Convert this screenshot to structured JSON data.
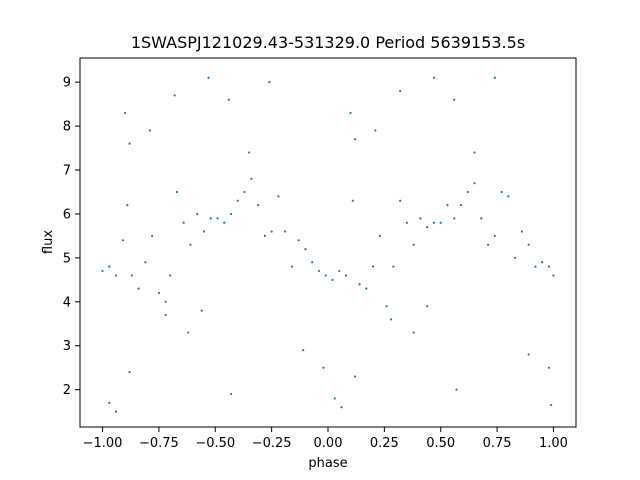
{
  "chart_data": {
    "type": "scatter",
    "title": "1SWASPJ121029.43-531329.0 Period 5639153.5s",
    "xlabel": "phase",
    "ylabel": "flux",
    "xlim": [
      -1.1,
      1.1
    ],
    "ylim": [
      1.15,
      9.55
    ],
    "x_ticks": [
      -1.0,
      -0.75,
      -0.5,
      -0.25,
      0.0,
      0.25,
      0.5,
      0.75,
      1.0
    ],
    "x_tick_labels": [
      "−1.00",
      "−0.75",
      "−0.50",
      "−0.25",
      "0.00",
      "0.25",
      "0.50",
      "0.75",
      "1.00"
    ],
    "y_ticks": [
      2,
      3,
      4,
      5,
      6,
      7,
      8,
      9
    ],
    "y_tick_labels": [
      "2",
      "3",
      "4",
      "5",
      "6",
      "7",
      "8",
      "9"
    ],
    "grid": false,
    "legend": "none",
    "marker_color": "#1f77b4",
    "series": [
      {
        "points": [
          [
            -1.0,
            4.7
          ],
          [
            -0.97,
            4.8
          ],
          [
            -0.94,
            4.6
          ],
          [
            -0.91,
            5.4
          ],
          [
            -0.89,
            6.2
          ],
          [
            -0.87,
            4.6
          ],
          [
            -0.84,
            4.3
          ],
          [
            -0.81,
            4.9
          ],
          [
            -0.78,
            5.5
          ],
          [
            -0.75,
            4.2
          ],
          [
            -0.72,
            4.0
          ],
          [
            -0.7,
            4.6
          ],
          [
            -0.67,
            6.5
          ],
          [
            -0.64,
            5.8
          ],
          [
            -0.61,
            5.3
          ],
          [
            -0.58,
            6.0
          ],
          [
            -0.55,
            5.6
          ],
          [
            -0.52,
            5.9
          ],
          [
            -0.49,
            5.9
          ],
          [
            -0.46,
            5.8
          ],
          [
            -0.43,
            6.0
          ],
          [
            -0.4,
            6.3
          ],
          [
            -0.37,
            6.5
          ],
          [
            -0.34,
            6.8
          ],
          [
            -0.31,
            6.2
          ],
          [
            -0.28,
            5.5
          ],
          [
            -0.25,
            5.6
          ],
          [
            -0.22,
            6.4
          ],
          [
            -0.19,
            5.6
          ],
          [
            -0.16,
            4.8
          ],
          [
            -0.13,
            5.4
          ],
          [
            -0.1,
            5.2
          ],
          [
            -0.07,
            4.9
          ],
          [
            -0.04,
            4.7
          ],
          [
            -0.01,
            4.6
          ],
          [
            0.02,
            4.5
          ],
          [
            0.05,
            4.7
          ],
          [
            0.08,
            4.6
          ],
          [
            0.11,
            6.3
          ],
          [
            0.14,
            4.4
          ],
          [
            0.17,
            4.3
          ],
          [
            0.2,
            4.8
          ],
          [
            0.23,
            5.5
          ],
          [
            0.26,
            3.9
          ],
          [
            0.29,
            4.8
          ],
          [
            0.32,
            6.3
          ],
          [
            0.35,
            5.8
          ],
          [
            0.38,
            5.3
          ],
          [
            0.41,
            5.9
          ],
          [
            0.44,
            5.7
          ],
          [
            0.47,
            5.8
          ],
          [
            0.5,
            5.8
          ],
          [
            0.53,
            6.2
          ],
          [
            0.56,
            5.9
          ],
          [
            0.59,
            6.2
          ],
          [
            0.62,
            6.5
          ],
          [
            0.65,
            6.7
          ],
          [
            0.68,
            5.9
          ],
          [
            0.71,
            5.3
          ],
          [
            0.74,
            5.5
          ],
          [
            0.77,
            6.5
          ],
          [
            0.8,
            6.4
          ],
          [
            0.83,
            5.0
          ],
          [
            0.86,
            5.6
          ],
          [
            0.89,
            5.3
          ],
          [
            0.92,
            4.8
          ],
          [
            0.95,
            4.9
          ],
          [
            0.98,
            4.8
          ],
          [
            1.0,
            4.6
          ],
          [
            -0.88,
            7.6
          ],
          [
            0.12,
            7.7
          ],
          [
            -0.9,
            8.3
          ],
          [
            0.1,
            8.3
          ],
          [
            -0.79,
            7.9
          ],
          [
            0.21,
            7.9
          ],
          [
            -0.44,
            8.6
          ],
          [
            0.56,
            8.6
          ],
          [
            -0.53,
            9.1
          ],
          [
            0.47,
            9.1
          ],
          [
            -0.94,
            1.5
          ],
          [
            0.06,
            1.6
          ],
          [
            -0.43,
            1.9
          ],
          [
            0.57,
            2.0
          ],
          [
            -0.88,
            2.4
          ],
          [
            0.12,
            2.3
          ],
          [
            -0.62,
            3.3
          ],
          [
            0.38,
            3.3
          ],
          [
            -0.72,
            3.7
          ],
          [
            0.28,
            3.6
          ],
          [
            -0.11,
            2.9
          ],
          [
            0.89,
            2.8
          ],
          [
            -0.68,
            8.7
          ],
          [
            0.32,
            8.8
          ],
          [
            0.74,
            9.1
          ],
          [
            -0.26,
            9.0
          ],
          [
            -0.35,
            7.4
          ],
          [
            0.65,
            7.4
          ],
          [
            -0.56,
            3.8
          ],
          [
            0.44,
            3.9
          ],
          [
            -0.97,
            1.7
          ],
          [
            0.03,
            1.8
          ],
          [
            0.99,
            1.65
          ],
          [
            -0.02,
            2.5
          ],
          [
            0.98,
            2.5
          ]
        ]
      }
    ]
  }
}
